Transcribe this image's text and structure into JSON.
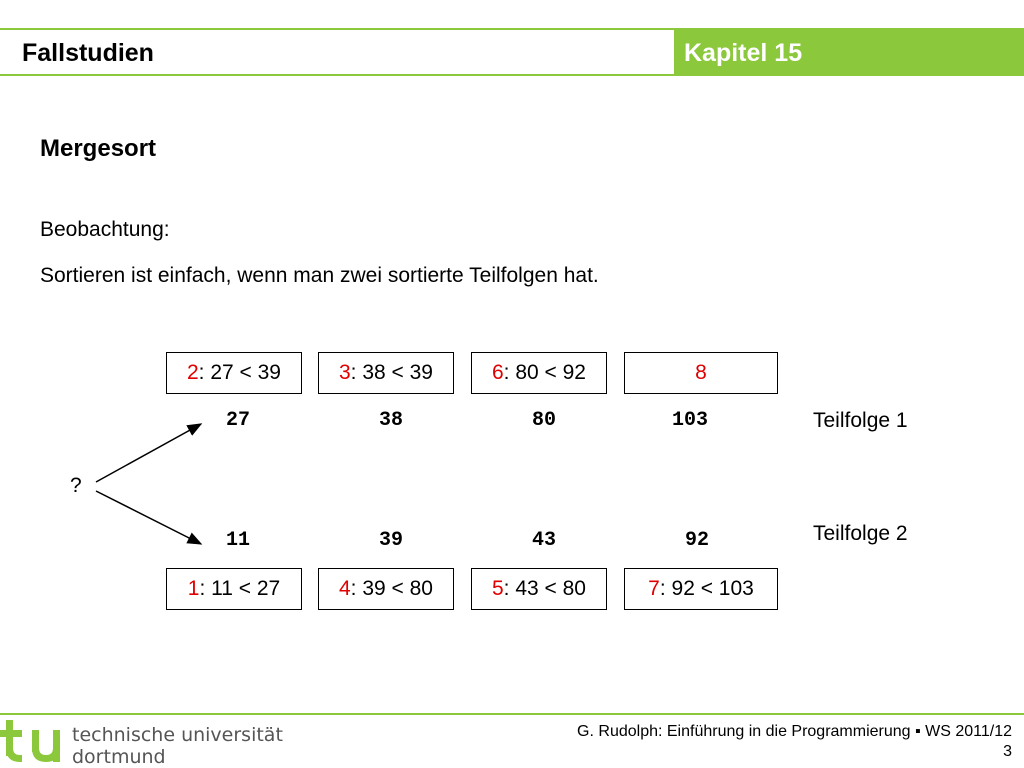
{
  "header": {
    "title": "Fallstudien",
    "chapter": "Kapitel 15"
  },
  "slide": {
    "title": "Mergesort",
    "observation_label": "Beobachtung:",
    "observation_text": "Sortieren ist einfach, wenn man zwei sortierte Teilfolgen hat.",
    "question_mark": "?"
  },
  "top_comparisons": [
    {
      "step": "2",
      "text": ": 27 < 39"
    },
    {
      "step": "3",
      "text": ": 38 < 39"
    },
    {
      "step": "6",
      "text": ": 80 < 92"
    },
    {
      "step": "8",
      "text": ""
    }
  ],
  "bottom_comparisons": [
    {
      "step": "1",
      "text": ": 11 < 27"
    },
    {
      "step": "4",
      "text": ": 39 < 80"
    },
    {
      "step": "5",
      "text": ": 43 < 80"
    },
    {
      "step": "7",
      "text": ": 92 < 103"
    }
  ],
  "sequence1": {
    "label": "Teilfolge 1",
    "values": [
      "27",
      "38",
      "80",
      "103"
    ]
  },
  "sequence2": {
    "label": "Teilfolge 2",
    "values": [
      "11",
      "39",
      "43",
      "92"
    ]
  },
  "footer": {
    "logo_line1": "technische universität",
    "logo_line2": "dortmund",
    "credit": "G. Rudolph: Einführung in die Programmierung ▪ WS 2011/12",
    "page": "3"
  },
  "colors": {
    "accent": "#8cc83c",
    "highlight": "#e00000"
  }
}
